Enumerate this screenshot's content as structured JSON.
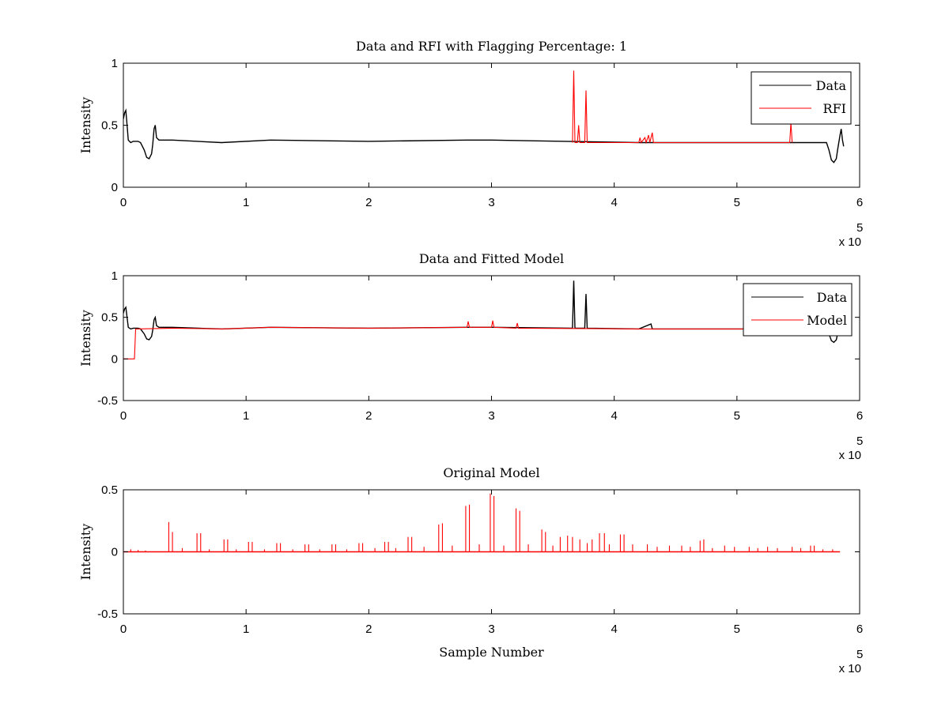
{
  "chart_data": [
    {
      "type": "line",
      "title": "Data and RFI with Flagging Percentage: 1",
      "xlabel": "",
      "ylabel": "Intensity",
      "xlim": [
        0,
        600000
      ],
      "ylim": [
        0,
        1
      ],
      "xticks": [
        "0",
        "1",
        "2",
        "3",
        "4",
        "5",
        "6"
      ],
      "yticks": [
        "0",
        "0.5",
        "1"
      ],
      "x_multiplier": {
        "base": "x 10",
        "exp": "5"
      },
      "legend": {
        "position": "top-right",
        "entries": [
          {
            "name": "Data",
            "color": "#000000"
          },
          {
            "name": "RFI",
            "color": "#ff0000"
          }
        ]
      },
      "series": [
        {
          "name": "Data",
          "color": "#000000",
          "points": [
            [
              0,
              0.55
            ],
            [
              1000,
              0.6
            ],
            [
              2000,
              0.62
            ],
            [
              3000,
              0.5
            ],
            [
              4000,
              0.38
            ],
            [
              6000,
              0.36
            ],
            [
              8000,
              0.37
            ],
            [
              12000,
              0.37
            ],
            [
              14000,
              0.36
            ],
            [
              17000,
              0.3
            ],
            [
              19000,
              0.24
            ],
            [
              21000,
              0.23
            ],
            [
              23000,
              0.27
            ],
            [
              24000,
              0.35
            ],
            [
              25000,
              0.47
            ],
            [
              26000,
              0.5
            ],
            [
              27000,
              0.4
            ],
            [
              29000,
              0.38
            ],
            [
              40000,
              0.38
            ],
            [
              80000,
              0.36
            ],
            [
              120000,
              0.38
            ],
            [
              200000,
              0.37
            ],
            [
              280000,
              0.38
            ],
            [
              300000,
              0.38
            ],
            [
              360000,
              0.37
            ],
            [
              420000,
              0.36
            ],
            [
              500000,
              0.36
            ],
            [
              560000,
              0.36
            ],
            [
              573000,
              0.36
            ],
            [
              575000,
              0.3
            ],
            [
              577000,
              0.22
            ],
            [
              579000,
              0.2
            ],
            [
              581000,
              0.23
            ],
            [
              582000,
              0.3
            ],
            [
              584000,
              0.42
            ],
            [
              585000,
              0.47
            ],
            [
              586000,
              0.38
            ],
            [
              587000,
              0.33
            ]
          ]
        },
        {
          "name": "RFI",
          "color": "#ff0000",
          "points": [
            [
              366000,
              0.36
            ],
            [
              367000,
              0.94
            ],
            [
              368000,
              0.36
            ],
            [
              370000,
              0.36
            ],
            [
              371000,
              0.5
            ],
            [
              372000,
              0.36
            ],
            [
              376000,
              0.36
            ],
            [
              377000,
              0.78
            ],
            [
              378000,
              0.36
            ],
            [
              420000,
              0.36
            ],
            [
              421000,
              0.4
            ],
            [
              422000,
              0.36
            ],
            [
              425000,
              0.4
            ],
            [
              426000,
              0.36
            ],
            [
              428000,
              0.42
            ],
            [
              429000,
              0.36
            ],
            [
              431000,
              0.44
            ],
            [
              432000,
              0.36
            ],
            [
              543000,
              0.36
            ],
            [
              544000,
              0.52
            ],
            [
              545000,
              0.36
            ]
          ]
        }
      ]
    },
    {
      "type": "line",
      "title": "Data and Fitted Model",
      "xlabel": "",
      "ylabel": "Intensity",
      "xlim": [
        0,
        600000
      ],
      "ylim": [
        -0.5,
        1
      ],
      "xticks": [
        "0",
        "1",
        "2",
        "3",
        "4",
        "5",
        "6"
      ],
      "yticks": [
        "-0.5",
        "0",
        "0.5",
        "1"
      ],
      "x_multiplier": {
        "base": "x 10",
        "exp": "5"
      },
      "legend": {
        "position": "top-right",
        "entries": [
          {
            "name": "Data",
            "color": "#000000"
          },
          {
            "name": "Model",
            "color": "#ff0000"
          }
        ]
      },
      "series": [
        {
          "name": "Data",
          "color": "#000000",
          "points": [
            [
              0,
              0.55
            ],
            [
              1000,
              0.6
            ],
            [
              2000,
              0.62
            ],
            [
              3000,
              0.5
            ],
            [
              4000,
              0.38
            ],
            [
              6000,
              0.36
            ],
            [
              8000,
              0.37
            ],
            [
              12000,
              0.37
            ],
            [
              14000,
              0.36
            ],
            [
              17000,
              0.3
            ],
            [
              19000,
              0.24
            ],
            [
              21000,
              0.23
            ],
            [
              23000,
              0.27
            ],
            [
              24000,
              0.35
            ],
            [
              25000,
              0.47
            ],
            [
              26000,
              0.5
            ],
            [
              27000,
              0.4
            ],
            [
              29000,
              0.38
            ],
            [
              40000,
              0.38
            ],
            [
              80000,
              0.36
            ],
            [
              120000,
              0.38
            ],
            [
              200000,
              0.37
            ],
            [
              280000,
              0.38
            ],
            [
              300000,
              0.38
            ],
            [
              366000,
              0.37
            ],
            [
              367000,
              0.94
            ],
            [
              368000,
              0.37
            ],
            [
              376000,
              0.37
            ],
            [
              377000,
              0.78
            ],
            [
              378000,
              0.37
            ],
            [
              420000,
              0.36
            ],
            [
              430000,
              0.42
            ],
            [
              431000,
              0.36
            ],
            [
              500000,
              0.36
            ],
            [
              560000,
              0.36
            ],
            [
              573000,
              0.36
            ],
            [
              575000,
              0.3
            ],
            [
              577000,
              0.22
            ],
            [
              579000,
              0.2
            ],
            [
              581000,
              0.23
            ],
            [
              582000,
              0.3
            ],
            [
              584000,
              0.42
            ],
            [
              585000,
              0.47
            ],
            [
              586000,
              0.38
            ],
            [
              587000,
              0.33
            ]
          ]
        },
        {
          "name": "Model",
          "color": "#ff0000",
          "points": [
            [
              0,
              0
            ],
            [
              9000,
              0
            ],
            [
              10000,
              0.36
            ],
            [
              11000,
              0.36
            ],
            [
              40000,
              0.37
            ],
            [
              80000,
              0.36
            ],
            [
              120000,
              0.38
            ],
            [
              200000,
              0.37
            ],
            [
              280000,
              0.38
            ],
            [
              281000,
              0.45
            ],
            [
              282000,
              0.38
            ],
            [
              300000,
              0.38
            ],
            [
              301000,
              0.46
            ],
            [
              302000,
              0.38
            ],
            [
              320000,
              0.37
            ],
            [
              321000,
              0.43
            ],
            [
              322000,
              0.37
            ],
            [
              420000,
              0.36
            ],
            [
              500000,
              0.36
            ],
            [
              560000,
              0.36
            ]
          ]
        }
      ]
    },
    {
      "type": "line",
      "title": "Original Model",
      "xlabel": "Sample Number",
      "ylabel": "Intensity",
      "xlim": [
        0,
        600000
      ],
      "ylim": [
        -0.5,
        0.5
      ],
      "xticks": [
        "0",
        "1",
        "2",
        "3",
        "4",
        "5",
        "6"
      ],
      "yticks": [
        "-0.5",
        "0",
        "0.5"
      ],
      "x_multiplier": {
        "base": "x 10",
        "exp": "5"
      },
      "series": [
        {
          "name": "",
          "color": "#ff0000",
          "baseline": [
            0,
            584000
          ],
          "spikes": [
            [
              37000,
              0.24
            ],
            [
              40000,
              0.16
            ],
            [
              60000,
              0.15
            ],
            [
              63000,
              0.15
            ],
            [
              82000,
              0.1
            ],
            [
              85000,
              0.1
            ],
            [
              102000,
              0.08
            ],
            [
              105000,
              0.08
            ],
            [
              125000,
              0.07
            ],
            [
              128000,
              0.07
            ],
            [
              148000,
              0.06
            ],
            [
              151000,
              0.06
            ],
            [
              170000,
              0.06
            ],
            [
              173000,
              0.06
            ],
            [
              192000,
              0.07
            ],
            [
              195000,
              0.07
            ],
            [
              213000,
              0.08
            ],
            [
              216000,
              0.08
            ],
            [
              232000,
              0.12
            ],
            [
              235000,
              0.12
            ],
            [
              257000,
              0.22
            ],
            [
              260000,
              0.23
            ],
            [
              279000,
              0.37
            ],
            [
              282000,
              0.38
            ],
            [
              299000,
              0.47
            ],
            [
              302000,
              0.45
            ],
            [
              320000,
              0.35
            ],
            [
              323000,
              0.33
            ],
            [
              341000,
              0.18
            ],
            [
              344000,
              0.16
            ],
            [
              356000,
              0.12
            ],
            [
              362000,
              0.13
            ],
            [
              366000,
              0.12
            ],
            [
              372000,
              0.1
            ],
            [
              382000,
              0.1
            ],
            [
              388000,
              0.15
            ],
            [
              392000,
              0.15
            ],
            [
              405000,
              0.14
            ],
            [
              408000,
              0.14
            ],
            [
              427000,
              0.06
            ],
            [
              445000,
              0.05
            ],
            [
              470000,
              0.09
            ],
            [
              473000,
              0.1
            ],
            [
              490000,
              0.05
            ],
            [
              510000,
              0.04
            ],
            [
              525000,
              0.04
            ],
            [
              545000,
              0.04
            ],
            [
              560000,
              0.05
            ],
            [
              563000,
              0.05
            ],
            [
              6000,
              0.02
            ],
            [
              12000,
              0.015
            ],
            [
              18000,
              0.01
            ],
            [
              48000,
              0.03
            ],
            [
              70000,
              0.02
            ],
            [
              92000,
              0.02
            ],
            [
              115000,
              0.02
            ],
            [
              138000,
              0.02
            ],
            [
              160000,
              0.02
            ],
            [
              182000,
              0.02
            ],
            [
              205000,
              0.03
            ],
            [
              222000,
              0.03
            ],
            [
              245000,
              0.04
            ],
            [
              268000,
              0.05
            ],
            [
              290000,
              0.06
            ],
            [
              310000,
              0.05
            ],
            [
              330000,
              0.06
            ],
            [
              350000,
              0.05
            ],
            [
              378000,
              0.07
            ],
            [
              396000,
              0.06
            ],
            [
              415000,
              0.06
            ],
            [
              435000,
              0.04
            ],
            [
              455000,
              0.05
            ],
            [
              462000,
              0.04
            ],
            [
              480000,
              0.03
            ],
            [
              498000,
              0.04
            ],
            [
              517000,
              0.03
            ],
            [
              533000,
              0.03
            ],
            [
              552000,
              0.03
            ],
            [
              570000,
              0.02
            ],
            [
              578000,
              0.02
            ]
          ]
        }
      ]
    }
  ]
}
